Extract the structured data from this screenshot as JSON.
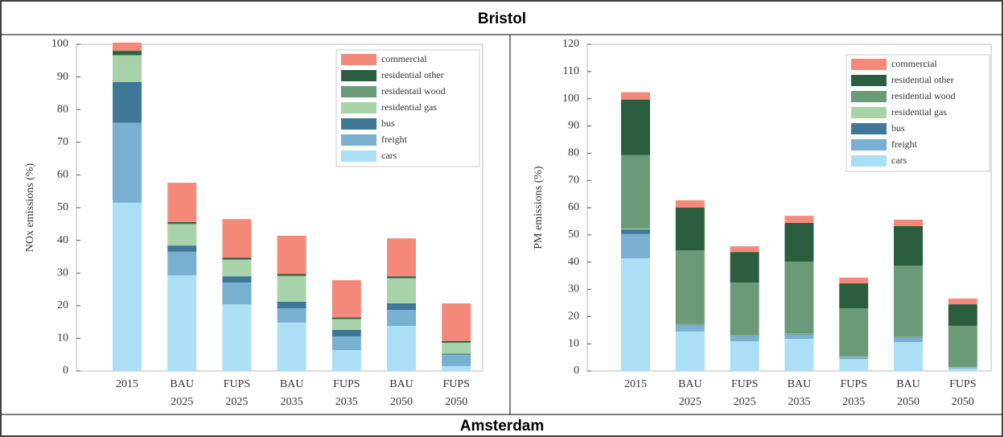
{
  "table": {
    "headers": [
      "Bristol",
      "Amsterdam"
    ]
  },
  "chart_data": [
    {
      "type": "bar",
      "stacked": true,
      "ylabel": "NOx emissions (%)",
      "categories": [
        [
          "2015"
        ],
        [
          "BAU",
          "2025"
        ],
        [
          "FUPS",
          "2025"
        ],
        [
          "BAU",
          "2035"
        ],
        [
          "FUPS",
          "2035"
        ],
        [
          "BAU",
          "2050"
        ],
        [
          "FUPS",
          "2050"
        ]
      ],
      "ylim": [
        0,
        100
      ],
      "yticks": [
        0,
        10,
        20,
        30,
        40,
        50,
        60,
        70,
        80,
        90,
        100
      ],
      "legend": "upper right",
      "series": [
        {
          "name": "cars",
          "color": "#aadff6",
          "values": [
            51.5,
            29.3,
            20.4,
            14.8,
            6.4,
            13.8,
            1.5
          ]
        },
        {
          "name": "freight",
          "color": "#79afd0",
          "values": [
            24.5,
            7.2,
            6.7,
            4.4,
            4.2,
            4.9,
            3.5
          ]
        },
        {
          "name": "bus",
          "color": "#3f7797",
          "values": [
            12.5,
            1.9,
            1.9,
            2,
            2,
            2,
            0.3
          ]
        },
        {
          "name": "residential gas",
          "color": "#a8d2a8",
          "values": [
            8,
            6.5,
            5,
            7.8,
            3.2,
            7.6,
            3.3
          ]
        },
        {
          "name": "residentail wood",
          "color": "#6a9a78",
          "values": [
            0.3,
            0.2,
            0.2,
            0.2,
            0.2,
            0.2,
            0.1
          ]
        },
        {
          "name": "residential other",
          "color": "#2b5e3e",
          "values": [
            1.2,
            0.5,
            0.5,
            0.5,
            0.4,
            0.5,
            0.5
          ]
        },
        {
          "name": "commercial",
          "color": "#f4897a",
          "values": [
            2.5,
            12,
            11.8,
            11.7,
            11.4,
            11.6,
            11.5
          ]
        }
      ]
    },
    {
      "type": "bar",
      "stacked": true,
      "ylabel": "PM emissions (%)",
      "categories": [
        [
          "2015"
        ],
        [
          "BAU",
          "2025"
        ],
        [
          "FUPS",
          "2025"
        ],
        [
          "BAU",
          "2035"
        ],
        [
          "FUPS",
          "2035"
        ],
        [
          "BAU",
          "2050"
        ],
        [
          "FUPS",
          "2050"
        ]
      ],
      "ylim": [
        0,
        120
      ],
      "yticks": [
        0,
        10,
        20,
        30,
        40,
        50,
        60,
        70,
        80,
        90,
        100,
        110,
        120
      ],
      "legend": "upper right",
      "series": [
        {
          "name": "cars",
          "color": "#aadff6",
          "values": [
            41.4,
            14.5,
            10.9,
            11.8,
            4.4,
            10.6,
            0.9
          ]
        },
        {
          "name": "freight",
          "color": "#79afd0",
          "values": [
            8.9,
            2.3,
            1.8,
            1.5,
            0.6,
            1.5,
            0.3
          ]
        },
        {
          "name": "bus",
          "color": "#3f7797",
          "values": [
            1.7,
            0.2,
            0.2,
            0.2,
            0.1,
            0.2,
            0.1
          ]
        },
        {
          "name": "residential gas",
          "color": "#a8d2a8",
          "values": [
            0.3,
            0.2,
            0.2,
            0.2,
            0.2,
            0.2,
            0.2
          ]
        },
        {
          "name": "residential wood",
          "color": "#6a9a78",
          "values": [
            27,
            27.1,
            19.4,
            26.5,
            17.7,
            26.2,
            15.1
          ]
        },
        {
          "name": "residential other",
          "color": "#2b5e3e",
          "values": [
            20.4,
            15.7,
            11.2,
            14.2,
            9.2,
            14.5,
            7.9
          ]
        },
        {
          "name": "commercial",
          "color": "#f4897a",
          "values": [
            2.7,
            2.7,
            2.1,
            2.6,
            2.1,
            2.4,
            2.1
          ]
        }
      ]
    }
  ]
}
